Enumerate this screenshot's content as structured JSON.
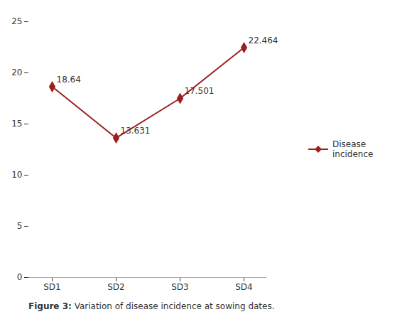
{
  "chart_data": {
    "type": "line",
    "categories": [
      "SD1",
      "SD2",
      "SD3",
      "SD4"
    ],
    "series": [
      {
        "name": "Disease\nincidence",
        "color": "#9B2020",
        "marker": "diamond",
        "line_style": "solid",
        "values": [
          18.64,
          13.631,
          17.501,
          22.464
        ]
      }
    ],
    "ylim": [
      0,
      25
    ],
    "yticks": [
      0,
      5,
      10,
      15,
      20,
      25
    ],
    "grid": false,
    "legend": "right",
    "data_labels": true,
    "caption": "Figure 3: Variation of disease incidence at sowing dates."
  }
}
